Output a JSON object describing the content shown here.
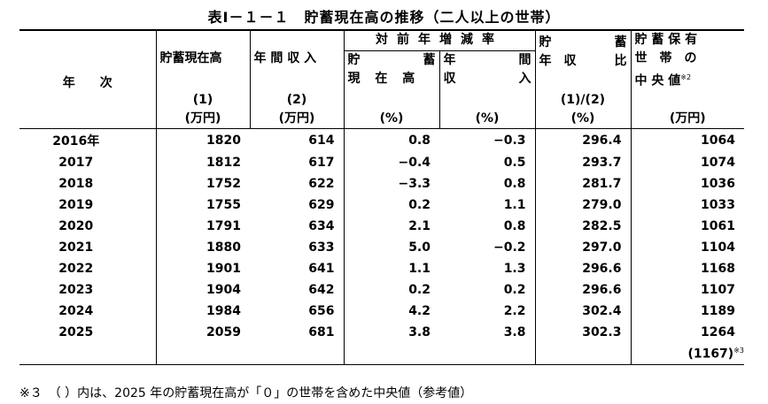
{
  "title": "表Ⅰ－１－１　貯蓄現在高の推移（二人以上の世帯）",
  "headers": {
    "year": "年　　次",
    "savings": "貯蓄現在高",
    "income": "年 間 収 入",
    "yoy_group": "対前年増減率",
    "yoy_savings_top_left": "貯",
    "yoy_savings_top_right": "蓄",
    "yoy_savings_bottom": "現 在 高",
    "yoy_income_top_left": "年",
    "yoy_income_top_right": "間",
    "yoy_income_bottom_left": "収",
    "yoy_income_bottom_right": "入",
    "ratio_top_left": "貯",
    "ratio_top_right": "蓄",
    "ratio_bottom_left": "年　収",
    "ratio_bottom_right": "比",
    "median_line1": "貯 蓄 保 有",
    "median_line2": "世　帯　の",
    "median_line3": "中 央 値",
    "median_sup": "※2",
    "idx1": "(1)",
    "idx2": "(2)",
    "idx_ratio": "(1)/(2)",
    "unit_savings": "(万円)",
    "unit_income": "(万円)",
    "unit_pct1": "(%)",
    "unit_pct2": "(%)",
    "unit_pct3": "(%)",
    "unit_median": "(万円)"
  },
  "rows": [
    {
      "year": "2016年",
      "savings": "1820",
      "income": "614",
      "yoy_s": "0.8",
      "yoy_i": "-0.3",
      "ratio": "296.4",
      "median": "1064"
    },
    {
      "year": "2017",
      "savings": "1812",
      "income": "617",
      "yoy_s": "-0.4",
      "yoy_i": "0.5",
      "ratio": "293.7",
      "median": "1074"
    },
    {
      "year": "2018",
      "savings": "1752",
      "income": "622",
      "yoy_s": "-3.3",
      "yoy_i": "0.8",
      "ratio": "281.7",
      "median": "1036"
    },
    {
      "year": "2019",
      "savings": "1755",
      "income": "629",
      "yoy_s": "0.2",
      "yoy_i": "1.1",
      "ratio": "279.0",
      "median": "1033"
    },
    {
      "year": "2020",
      "savings": "1791",
      "income": "634",
      "yoy_s": "2.1",
      "yoy_i": "0.8",
      "ratio": "282.5",
      "median": "1061"
    },
    {
      "year": "2021",
      "savings": "1880",
      "income": "633",
      "yoy_s": "5.0",
      "yoy_i": "-0.2",
      "ratio": "297.0",
      "median": "1104"
    },
    {
      "year": "2022",
      "savings": "1901",
      "income": "641",
      "yoy_s": "1.1",
      "yoy_i": "1.3",
      "ratio": "296.6",
      "median": "1168"
    },
    {
      "year": "2023",
      "savings": "1904",
      "income": "642",
      "yoy_s": "0.2",
      "yoy_i": "0.2",
      "ratio": "296.6",
      "median": "1107"
    },
    {
      "year": "2024",
      "savings": "1984",
      "income": "656",
      "yoy_s": "4.2",
      "yoy_i": "2.2",
      "ratio": "302.4",
      "median": "1189"
    },
    {
      "year": "2025",
      "savings": "2059",
      "income": "681",
      "yoy_s": "3.8",
      "yoy_i": "3.8",
      "ratio": "302.3",
      "median": "1264"
    }
  ],
  "median_extra": "(1167)",
  "median_extra_sup": "※3",
  "note": "※３　（ ）内は、2025 年の貯蓄現在高が「０」の世帯を含めた中央値（参考値）"
}
